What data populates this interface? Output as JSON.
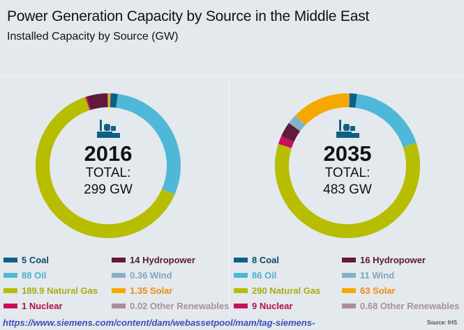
{
  "title": "Power Generation Capacity by Source in the Middle East",
  "subtitle": "Installed Capacity by Source (GW)",
  "url_text": "https://www.siemens.com/content/dam/webassetpool/mam/tag-siemens-",
  "source": "Source: IHS",
  "chart_data": [
    {
      "type": "pie",
      "variant": "donut",
      "title": "2016",
      "center_label": "TOTAL:",
      "center_value": "299 GW",
      "unit": "GW",
      "slices": [
        {
          "name": "Coal",
          "value": 5,
          "label": "5 Coal",
          "color": "#0e5f86"
        },
        {
          "name": "Oil",
          "value": 88,
          "label": "88 Oil",
          "color": "#4fb8d8"
        },
        {
          "name": "Natural Gas",
          "value": 189.9,
          "label": "189.9 Natural Gas",
          "color": "#b7bd00"
        },
        {
          "name": "Nuclear",
          "value": 1,
          "label": "1 Nuclear",
          "color": "#c6105f"
        },
        {
          "name": "Hydropower",
          "value": 14,
          "label": "14 Hydropower",
          "color": "#621a3a"
        },
        {
          "name": "Wind",
          "value": 0.36,
          "label": "0.36 Wind",
          "color": "#86b0c6"
        },
        {
          "name": "Solar",
          "value": 1.35,
          "label": "1.35 Solar",
          "color": "#f7a800"
        },
        {
          "name": "Other Renewables",
          "value": 0.02,
          "label": "0.02 Other Renewables",
          "color": "#ad8d9a"
        }
      ]
    },
    {
      "type": "pie",
      "variant": "donut",
      "title": "2035",
      "center_label": "TOTAL:",
      "center_value": "483 GW",
      "unit": "GW",
      "slices": [
        {
          "name": "Coal",
          "value": 8,
          "label": "8 Coal",
          "color": "#0e5f86"
        },
        {
          "name": "Oil",
          "value": 86,
          "label": "86 Oil",
          "color": "#4fb8d8"
        },
        {
          "name": "Natural Gas",
          "value": 290,
          "label": "290 Natural Gas",
          "color": "#b7bd00"
        },
        {
          "name": "Nuclear",
          "value": 9,
          "label": "9 Nuclear",
          "color": "#c6105f"
        },
        {
          "name": "Hydropower",
          "value": 16,
          "label": "16 Hydropower",
          "color": "#621a3a"
        },
        {
          "name": "Wind",
          "value": 11,
          "label": "11 Wind",
          "color": "#86b0c6"
        },
        {
          "name": "Solar",
          "value": 63,
          "label": "63 Solar",
          "color": "#f7a800"
        },
        {
          "name": "Other Renewables",
          "value": 0.68,
          "label": "0.68 Other Renewables",
          "color": "#ad8d9a"
        }
      ]
    }
  ],
  "legend_text_colors": {
    "Coal": "#0e4a6a",
    "Oil": "#4fb0d0",
    "Natural Gas": "#a9ae10",
    "Nuclear": "#b0104f",
    "Hydropower": "#5a1a35",
    "Wind": "#7ea8bf",
    "Solar": "#ef8a10",
    "Other Renewables": "#a8909a"
  },
  "icon": "power-plant-icon"
}
